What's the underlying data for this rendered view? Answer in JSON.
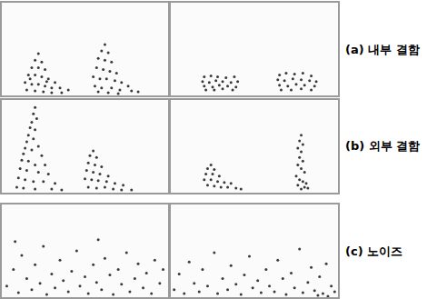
{
  "chart_data": [
    {
      "type": "scatter",
      "color": "#3a3a3a",
      "marker": "circle",
      "xlim": [
        0,
        100
      ],
      "ylim": [
        0,
        100
      ],
      "tick_labels": false,
      "grid": false,
      "x": [
        22,
        20,
        24,
        18,
        22,
        26,
        16,
        20,
        24,
        28,
        32,
        14,
        18,
        22,
        26,
        30,
        35,
        40,
        15,
        20,
        25,
        30,
        36,
        17,
        27,
        62,
        60,
        64,
        58,
        62,
        66,
        57,
        61,
        65,
        69,
        55,
        59,
        63,
        68,
        72,
        76,
        56,
        60,
        66,
        71,
        78,
        82,
        58,
        64,
        70
      ],
      "values": [
        45,
        38,
        36,
        30,
        30,
        28,
        22,
        22,
        20,
        18,
        14,
        14,
        12,
        12,
        10,
        8,
        8,
        6,
        6,
        5,
        4,
        3,
        3,
        18,
        15,
        55,
        48,
        46,
        40,
        38,
        36,
        30,
        28,
        26,
        24,
        20,
        18,
        18,
        16,
        14,
        10,
        10,
        8,
        8,
        6,
        5,
        4,
        4,
        3,
        2
      ]
    },
    {
      "type": "scatter",
      "color": "#3a3a3a",
      "marker": "circle",
      "xlim": [
        0,
        100
      ],
      "ylim": [
        0,
        100
      ],
      "tick_labels": false,
      "grid": false,
      "annotations": [
        "(a) 내부 결함"
      ],
      "x": [
        20,
        24,
        28,
        33,
        38,
        19,
        23,
        27,
        31,
        36,
        40,
        20,
        25,
        29,
        34,
        39,
        21,
        26,
        31,
        37,
        65,
        69,
        74,
        79,
        84,
        64,
        68,
        73,
        78,
        83,
        87,
        65,
        70,
        75,
        80,
        86,
        66,
        72,
        78,
        84
      ],
      "values": [
        20,
        21,
        20,
        19,
        20,
        15,
        14,
        16,
        15,
        14,
        15,
        10,
        9,
        11,
        10,
        9,
        6,
        6,
        7,
        6,
        22,
        24,
        23,
        24,
        21,
        17,
        16,
        18,
        17,
        16,
        15,
        11,
        10,
        12,
        11,
        10,
        6,
        6,
        7,
        6
      ]
    },
    {
      "type": "scatter",
      "color": "#3a3a3a",
      "marker": "circle",
      "xlim": [
        0,
        100
      ],
      "ylim": [
        0,
        100
      ],
      "tick_labels": false,
      "grid": false,
      "x": [
        20,
        19,
        21,
        18,
        17,
        20,
        16,
        19,
        15,
        14,
        18,
        13,
        22,
        24,
        12,
        16,
        20,
        26,
        11,
        15,
        22,
        28,
        10,
        14,
        19,
        25,
        32,
        9,
        13,
        20,
        30,
        36,
        55,
        53,
        57,
        52,
        56,
        60,
        51,
        55,
        59,
        64,
        50,
        54,
        58,
        63,
        68,
        73,
        52,
        57,
        62,
        67,
        72,
        78
      ],
      "values": [
        92,
        85,
        80,
        76,
        70,
        68,
        62,
        58,
        55,
        48,
        46,
        42,
        50,
        40,
        35,
        34,
        30,
        30,
        26,
        24,
        22,
        20,
        16,
        14,
        12,
        12,
        10,
        6,
        5,
        4,
        4,
        3,
        45,
        40,
        38,
        32,
        30,
        28,
        24,
        22,
        20,
        18,
        15,
        14,
        13,
        12,
        10,
        8,
        6,
        5,
        6,
        4,
        3,
        3
      ]
    },
    {
      "type": "scatter",
      "color": "#3a3a3a",
      "marker": "circle",
      "xlim": [
        0,
        100
      ],
      "ylim": [
        0,
        100
      ],
      "tick_labels": false,
      "grid": false,
      "annotations": [
        "(b) 외부 결함"
      ],
      "x": [
        24,
        22,
        26,
        21,
        25,
        29,
        20,
        24,
        28,
        32,
        36,
        22,
        26,
        30,
        34,
        39,
        42,
        78,
        77,
        79,
        76,
        78,
        77,
        79,
        76,
        78,
        80,
        75,
        77,
        79,
        81,
        76,
        80,
        82,
        78
      ],
      "values": [
        30,
        26,
        25,
        20,
        20,
        18,
        14,
        14,
        12,
        11,
        10,
        8,
        7,
        6,
        6,
        5,
        4,
        62,
        56,
        52,
        48,
        44,
        38,
        34,
        30,
        26,
        22,
        18,
        14,
        12,
        10,
        8,
        6,
        5,
        4
      ]
    },
    {
      "type": "scatter",
      "color": "#3a3a3a",
      "marker": "circle",
      "xlim": [
        0,
        100
      ],
      "ylim": [
        0,
        100
      ],
      "tick_labels": false,
      "grid": false,
      "x": [
        3,
        7,
        10,
        12,
        15,
        18,
        20,
        23,
        25,
        27,
        30,
        32,
        35,
        37,
        40,
        42,
        45,
        47,
        50,
        52,
        55,
        57,
        60,
        62,
        65,
        67,
        70,
        72,
        75,
        77,
        80,
        82,
        85,
        87,
        90,
        92,
        95,
        97,
        8,
        58
      ],
      "values": [
        12,
        30,
        5,
        45,
        20,
        8,
        35,
        15,
        55,
        3,
        25,
        10,
        40,
        18,
        6,
        28,
        50,
        12,
        22,
        4,
        35,
        16,
        8,
        42,
        24,
        3,
        30,
        14,
        48,
        6,
        20,
        36,
        10,
        26,
        4,
        40,
        15,
        30,
        60,
        62
      ]
    },
    {
      "type": "scatter",
      "color": "#3a3a3a",
      "marker": "circle",
      "xlim": [
        0,
        100
      ],
      "ylim": [
        0,
        100
      ],
      "tick_labels": false,
      "grid": false,
      "annotations": [
        "(c) 노이즈"
      ],
      "x": [
        2,
        5,
        8,
        11,
        14,
        17,
        19,
        22,
        26,
        28,
        31,
        34,
        36,
        39,
        42,
        44,
        47,
        49,
        52,
        54,
        57,
        59,
        62,
        64,
        67,
        69,
        72,
        74,
        77,
        79,
        82,
        84,
        86,
        89,
        91,
        93,
        96,
        98,
        88,
        94
      ],
      "values": [
        8,
        25,
        4,
        38,
        15,
        6,
        30,
        12,
        48,
        4,
        20,
        8,
        34,
        14,
        3,
        24,
        44,
        10,
        18,
        5,
        30,
        12,
        6,
        40,
        20,
        3,
        26,
        10,
        52,
        5,
        16,
        32,
        7,
        22,
        4,
        36,
        12,
        6,
        2,
        1
      ]
    }
  ]
}
